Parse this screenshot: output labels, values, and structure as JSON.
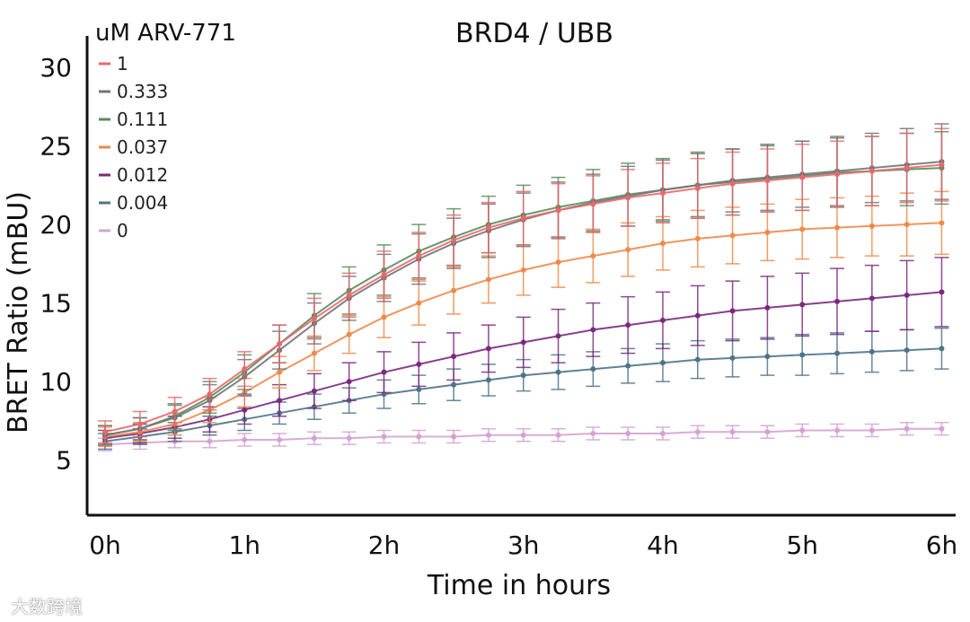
{
  "watermark": "大数跨境",
  "chart_data": {
    "type": "scatter",
    "title": "BRD4 / UBB",
    "xlabel": "Time in hours",
    "ylabel": "BRET Ratio (mBU)",
    "legend_title": "uM ARV-771",
    "legend_position": "top-left",
    "xlim": [
      0,
      6.1
    ],
    "ylim": [
      1.5,
      32
    ],
    "x_ticks": [
      0,
      1,
      2,
      3,
      4,
      5,
      6
    ],
    "x_tick_labels": [
      "0h",
      "1h",
      "2h",
      "3h",
      "4h",
      "5h",
      "6h"
    ],
    "y_ticks": [
      5,
      10,
      15,
      20,
      25,
      30
    ],
    "y_tick_labels": [
      "5",
      "10",
      "15",
      "20",
      "25",
      "30"
    ],
    "grid": false,
    "fit_curves": true,
    "error_bars": true,
    "x": [
      0,
      0.25,
      0.5,
      0.75,
      1,
      1.25,
      1.5,
      1.75,
      2,
      2.25,
      2.5,
      2.75,
      3,
      3.25,
      3.5,
      3.75,
      4,
      4.25,
      4.5,
      4.75,
      5,
      5.25,
      5.5,
      5.75,
      6
    ],
    "series": [
      {
        "name": "1",
        "color": "#e8696d",
        "y": [
          6.8,
          7.3,
          8.1,
          9.2,
          10.8,
          12.4,
          14.0,
          15.5,
          16.8,
          18.0,
          19.0,
          19.8,
          20.4,
          20.9,
          21.3,
          21.7,
          22.0,
          22.3,
          22.6,
          22.8,
          23.0,
          23.2,
          23.4,
          23.6,
          23.8
        ],
        "err": [
          0.7,
          0.8,
          0.9,
          1.0,
          1.1,
          1.2,
          1.3,
          1.4,
          1.5,
          1.5,
          1.6,
          1.6,
          1.7,
          1.7,
          1.8,
          1.8,
          1.9,
          1.9,
          2.0,
          2.0,
          2.1,
          2.1,
          2.2,
          2.2,
          2.3
        ]
      },
      {
        "name": "0.333",
        "color": "#737373",
        "y": [
          6.6,
          7.0,
          7.7,
          8.8,
          10.3,
          12.0,
          13.7,
          15.3,
          16.6,
          17.8,
          18.8,
          19.6,
          20.3,
          20.9,
          21.4,
          21.8,
          22.2,
          22.5,
          22.8,
          23.0,
          23.2,
          23.4,
          23.6,
          23.8,
          24.0
        ],
        "err": [
          0.6,
          0.7,
          0.8,
          1.0,
          1.1,
          1.2,
          1.3,
          1.4,
          1.5,
          1.6,
          1.6,
          1.7,
          1.7,
          1.8,
          1.8,
          1.9,
          1.9,
          2.0,
          2.0,
          2.1,
          2.1,
          2.2,
          2.2,
          2.3,
          2.4
        ]
      },
      {
        "name": "0.111",
        "color": "#5a8a5c",
        "y": [
          6.6,
          7.0,
          7.8,
          9.0,
          10.6,
          12.4,
          14.2,
          15.8,
          17.1,
          18.3,
          19.2,
          20.0,
          20.6,
          21.1,
          21.5,
          21.9,
          22.2,
          22.5,
          22.7,
          22.9,
          23.1,
          23.3,
          23.4,
          23.5,
          23.6
        ],
        "err": [
          0.6,
          0.7,
          0.8,
          1.0,
          1.1,
          1.2,
          1.4,
          1.5,
          1.6,
          1.7,
          1.8,
          1.8,
          1.9,
          1.9,
          2.0,
          2.0,
          2.0,
          2.1,
          2.1,
          2.1,
          2.2,
          2.2,
          2.2,
          2.3,
          2.3
        ]
      },
      {
        "name": "0.037",
        "color": "#ee8a4a",
        "y": [
          6.5,
          6.8,
          7.3,
          8.2,
          9.3,
          10.6,
          11.8,
          13.0,
          14.1,
          15.0,
          15.8,
          16.5,
          17.1,
          17.6,
          18.0,
          18.4,
          18.8,
          19.1,
          19.3,
          19.5,
          19.7,
          19.8,
          19.9,
          20.0,
          20.1
        ],
        "err": [
          0.6,
          0.6,
          0.7,
          0.8,
          0.9,
          1.0,
          1.1,
          1.2,
          1.3,
          1.4,
          1.5,
          1.5,
          1.6,
          1.6,
          1.7,
          1.7,
          1.7,
          1.8,
          1.8,
          1.8,
          1.9,
          1.9,
          1.9,
          2.0,
          2.0
        ]
      },
      {
        "name": "0.012",
        "color": "#7a2a7e",
        "y": [
          6.4,
          6.7,
          7.1,
          7.6,
          8.2,
          8.8,
          9.4,
          10.0,
          10.6,
          11.1,
          11.6,
          12.1,
          12.5,
          12.9,
          13.3,
          13.6,
          13.9,
          14.2,
          14.5,
          14.7,
          14.9,
          15.1,
          15.3,
          15.5,
          15.7
        ],
        "err": [
          0.5,
          0.6,
          0.7,
          0.8,
          0.9,
          1.0,
          1.1,
          1.2,
          1.3,
          1.4,
          1.5,
          1.5,
          1.6,
          1.7,
          1.7,
          1.8,
          1.8,
          1.9,
          1.9,
          2.0,
          2.0,
          2.1,
          2.1,
          2.2,
          2.2
        ]
      },
      {
        "name": "0.004",
        "color": "#4d7389",
        "y": [
          6.2,
          6.5,
          6.8,
          7.2,
          7.6,
          8.0,
          8.4,
          8.8,
          9.2,
          9.5,
          9.8,
          10.1,
          10.4,
          10.6,
          10.8,
          11.0,
          11.2,
          11.4,
          11.5,
          11.6,
          11.7,
          11.8,
          11.9,
          12.0,
          12.1
        ],
        "err": [
          0.5,
          0.5,
          0.6,
          0.6,
          0.7,
          0.7,
          0.8,
          0.8,
          0.9,
          0.9,
          1.0,
          1.0,
          1.0,
          1.1,
          1.1,
          1.1,
          1.2,
          1.2,
          1.2,
          1.2,
          1.3,
          1.3,
          1.3,
          1.3,
          1.3
        ]
      },
      {
        "name": "0",
        "color": "#d4a3d2",
        "y": [
          6.0,
          6.1,
          6.2,
          6.2,
          6.3,
          6.3,
          6.4,
          6.4,
          6.5,
          6.5,
          6.5,
          6.6,
          6.6,
          6.6,
          6.7,
          6.7,
          6.7,
          6.8,
          6.8,
          6.8,
          6.9,
          6.9,
          6.9,
          7.0,
          7.0
        ],
        "err": [
          0.4,
          0.4,
          0.4,
          0.4,
          0.4,
          0.4,
          0.4,
          0.4,
          0.4,
          0.4,
          0.4,
          0.4,
          0.4,
          0.4,
          0.4,
          0.4,
          0.4,
          0.4,
          0.4,
          0.4,
          0.4,
          0.4,
          0.4,
          0.4,
          0.4
        ]
      }
    ]
  }
}
